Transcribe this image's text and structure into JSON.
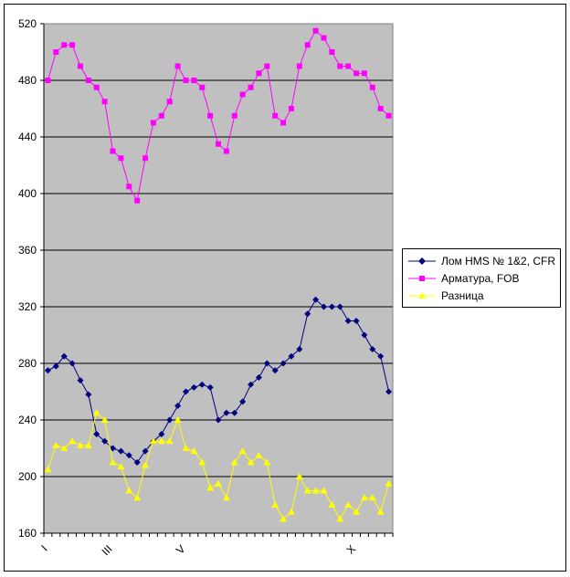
{
  "chart_data": {
    "type": "line",
    "title": "",
    "xlabel": "",
    "ylabel": "",
    "ylim": [
      160,
      520
    ],
    "yticks": [
      160,
      200,
      240,
      280,
      320,
      360,
      400,
      440,
      480,
      520
    ],
    "grid": true,
    "legend_position": "right",
    "x_tick_labels": [
      {
        "index": 0,
        "label": "I"
      },
      {
        "index": 8,
        "label": "III"
      },
      {
        "index": 17,
        "label": "V"
      },
      {
        "index": 38,
        "label": "X"
      }
    ],
    "series": [
      {
        "name": "Лом HMS № 1&2, CFR",
        "color": "#000080",
        "marker": "diamond",
        "values": [
          275,
          278,
          285,
          280,
          268,
          258,
          230,
          225,
          220,
          218,
          215,
          210,
          218,
          225,
          230,
          240,
          250,
          260,
          263,
          265,
          263,
          240,
          245,
          245,
          253,
          265,
          270,
          280,
          275,
          280,
          285,
          290,
          315,
          325,
          320,
          320,
          320,
          310,
          310,
          300,
          290,
          285,
          260
        ]
      },
      {
        "name": "Арматура, FOB",
        "color": "#FF00FF",
        "marker": "square",
        "values": [
          480,
          500,
          505,
          505,
          490,
          480,
          475,
          465,
          430,
          425,
          405,
          395,
          425,
          450,
          455,
          465,
          490,
          480,
          480,
          475,
          455,
          435,
          430,
          455,
          470,
          475,
          485,
          490,
          455,
          450,
          460,
          490,
          505,
          515,
          510,
          500,
          490,
          490,
          485,
          485,
          475,
          460,
          455
        ]
      },
      {
        "name": "Разница",
        "color": "#FFFF00",
        "marker": "triangle",
        "values": [
          205,
          222,
          220,
          225,
          222,
          222,
          245,
          240,
          210,
          207,
          190,
          185,
          208,
          225,
          225,
          225,
          240,
          220,
          218,
          210,
          192,
          195,
          185,
          210,
          218,
          210,
          215,
          210,
          180,
          170,
          175,
          200,
          190,
          190,
          190,
          180,
          170,
          180,
          175,
          185,
          185,
          175,
          195
        ]
      }
    ]
  }
}
